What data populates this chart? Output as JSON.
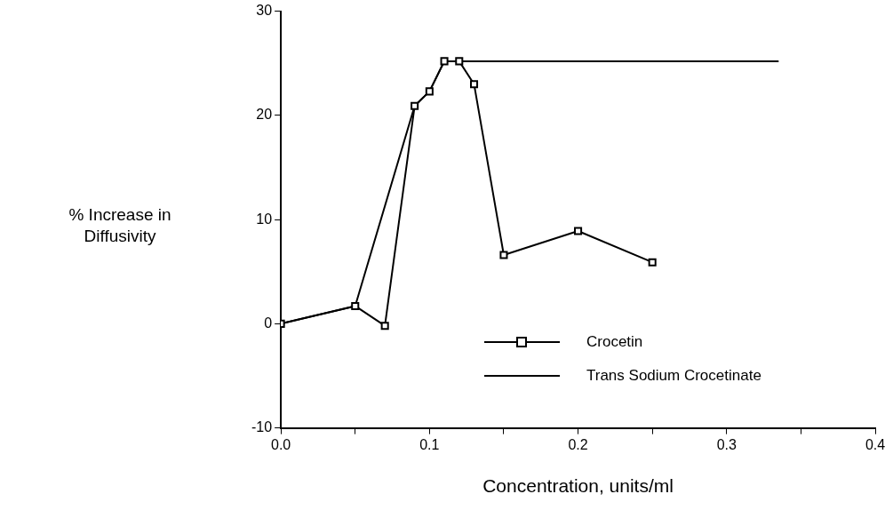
{
  "chart_data": {
    "type": "line",
    "xlabel": "Concentration, units/ml",
    "ylabel": "% Increase in Diffusivity",
    "xlim": [
      0,
      0.4
    ],
    "xticks": [
      {
        "value": 0,
        "label": "0.0"
      },
      {
        "value": 0.05,
        "label": null
      },
      {
        "value": 0.1,
        "label": "0.1"
      },
      {
        "value": 0.15,
        "label": null
      },
      {
        "value": 0.2,
        "label": "0.2"
      },
      {
        "value": 0.25,
        "label": null
      },
      {
        "value": 0.3,
        "label": "0.3"
      },
      {
        "value": 0.35,
        "label": null
      },
      {
        "value": 0.4,
        "label": "0.4"
      }
    ],
    "ylim": [
      -10,
      30
    ],
    "yticks": [
      -10,
      0,
      10,
      20,
      30
    ],
    "grid": false,
    "legend": "bottom right",
    "line_style": "solid",
    "series": [
      {
        "name": "Crocetin",
        "color": "#000000",
        "marker": "square",
        "x": [
          0,
          0.05,
          0.07,
          0.09,
          0.1,
          0.11,
          0.12,
          0.13,
          0.15,
          0.2,
          0.25
        ],
        "values": [
          0,
          1.7,
          -0.2,
          20.9,
          22.3,
          25.2,
          25.2,
          23,
          6.6,
          8.9,
          5.9
        ]
      },
      {
        "name": "Trans Sodium Crocetinate",
        "color": "#000000",
        "marker": "none",
        "x": [
          0,
          0.05,
          0.09,
          0.1,
          0.11,
          0.12,
          0.335
        ],
        "values": [
          0,
          1.7,
          20.9,
          22.3,
          25.2,
          25.2,
          25.2
        ]
      }
    ]
  }
}
